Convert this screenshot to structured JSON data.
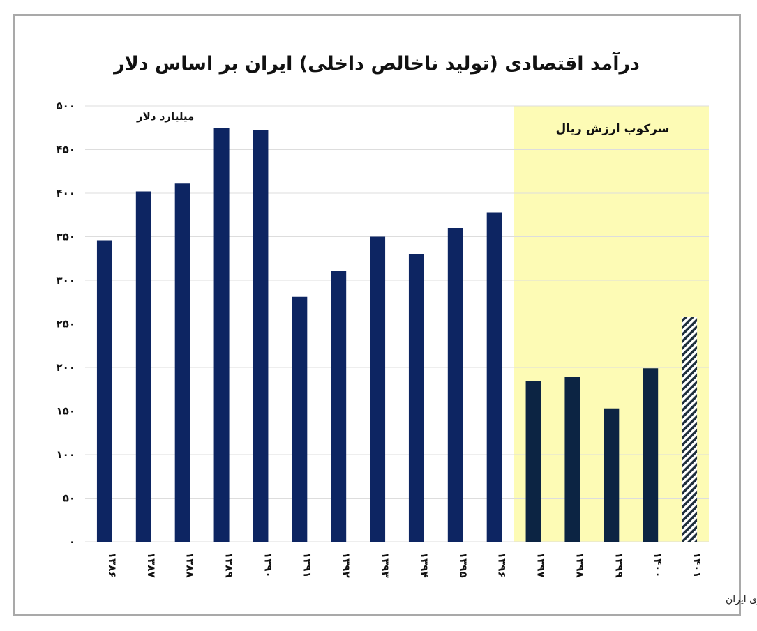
{
  "chart_data": {
    "type": "bar",
    "title": "درآمد اقتصادی (تولید ناخالص داخلی) ایران بر اساس دلار",
    "unit_label": "میلیارد دلار",
    "categories": [
      "۱۳۸۶",
      "۱۳۸۷",
      "۱۳۸۸",
      "۱۳۸۹",
      "۱۳۹۰",
      "۱۳۹۱",
      "۱۳۹۲",
      "۱۳۹۳",
      "۱۳۹۴",
      "۱۳۹۵",
      "۱۳۹۶",
      "۱۳۹۷",
      "۱۳۹۸",
      "۱۳۹۹",
      "۱۴۰۰",
      "۱۴۰۱"
    ],
    "values": [
      346,
      402,
      411,
      475,
      472,
      281,
      311,
      350,
      330,
      360,
      378,
      184,
      189,
      153,
      199,
      258
    ],
    "ylim": [
      0,
      500
    ],
    "yticks": [
      0,
      50,
      100,
      150,
      200,
      250,
      300,
      350,
      400,
      450,
      500
    ],
    "ytick_labels": [
      "۰",
      "۵۰",
      "۱۰۰",
      "۱۵۰",
      "۲۰۰",
      "۲۵۰",
      "۳۰۰",
      "۳۵۰",
      "۴۰۰",
      "۴۵۰",
      "۵۰۰"
    ],
    "grid": true,
    "colors": {
      "bar_main": "#0d2562",
      "bar_highlight": "#0c2443",
      "bar_estimate_stripe": "#1f2f3c",
      "highlight_region": "#fdfbb5",
      "grid": "#dddddd",
      "frame": "#a9a9a9"
    },
    "highlight_region": {
      "label": "سرکوب ارزش ریال",
      "from_category": "۱۳۹۷",
      "to_category": "۱۴۰۱"
    },
    "estimated_category": "۱۴۰۱",
    "source": "تحلیل و استنتاج: احسان سلطانی بر اساس داده های بانک مرکزی ایران"
  }
}
